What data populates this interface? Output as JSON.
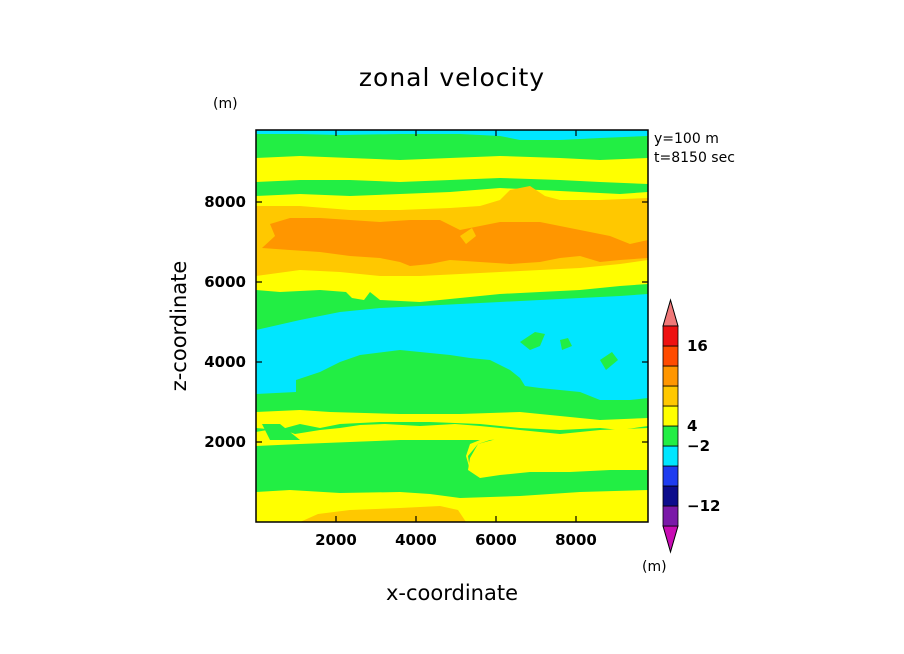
{
  "chart_data": {
    "type": "heatmap",
    "title": "zonal velocity",
    "xlabel": "x-coordinate",
    "ylabel": "z-coordinate",
    "y_unit": "(m)",
    "colorbar_unit": "(m)",
    "annotations": [
      "y=100 m",
      "t=8150 sec"
    ],
    "xlim": [
      0,
      9800
    ],
    "ylim": [
      0,
      9800
    ],
    "x_ticks": [
      2000,
      4000,
      6000,
      8000
    ],
    "y_ticks": [
      2000,
      4000,
      6000,
      8000
    ],
    "colorbar": {
      "colors": [
        "#c80cb4",
        "#7a19a8",
        "#0c0c8c",
        "#1e3cf0",
        "#00e6ff",
        "#22ee44",
        "#ffff00",
        "#ffc800",
        "#ff9600",
        "#ff4b00",
        "#ee1111",
        "#f07878"
      ],
      "labels": [
        {
          "text": "16",
          "boundary": 10
        },
        {
          "text": "4",
          "boundary": 6
        },
        {
          "text": "−2",
          "boundary": 5
        },
        {
          "text": "−12",
          "boundary": 2
        }
      ],
      "extend": "both"
    },
    "bands": [
      {
        "color": "green",
        "z_bottom": 0,
        "z_top": 9800
      },
      {
        "color": "yellow",
        "z_bottom": 0,
        "z_top": 720
      },
      {
        "color": "yellow",
        "z_bottom": 1450,
        "z_top": 2250
      },
      {
        "color": "yellow",
        "z_bottom": 2300,
        "z_top": 2850
      },
      {
        "color": "green",
        "z_bottom": 2250,
        "z_top": 2320
      },
      {
        "color": "cyan",
        "z_bottom": 3150,
        "z_top": 5450
      },
      {
        "color": "yellow",
        "z_bottom": 5950,
        "z_top": 8350
      },
      {
        "color": "gold",
        "z_bottom": 6170,
        "z_top": 8090
      },
      {
        "color": "orange",
        "z_bottom": 6380,
        "z_top": 7550
      },
      {
        "color": "yellow",
        "z_bottom": 8800,
        "z_top": 9330
      },
      {
        "color": "cyan",
        "z_bottom": 9650,
        "z_top": 9800
      }
    ]
  }
}
